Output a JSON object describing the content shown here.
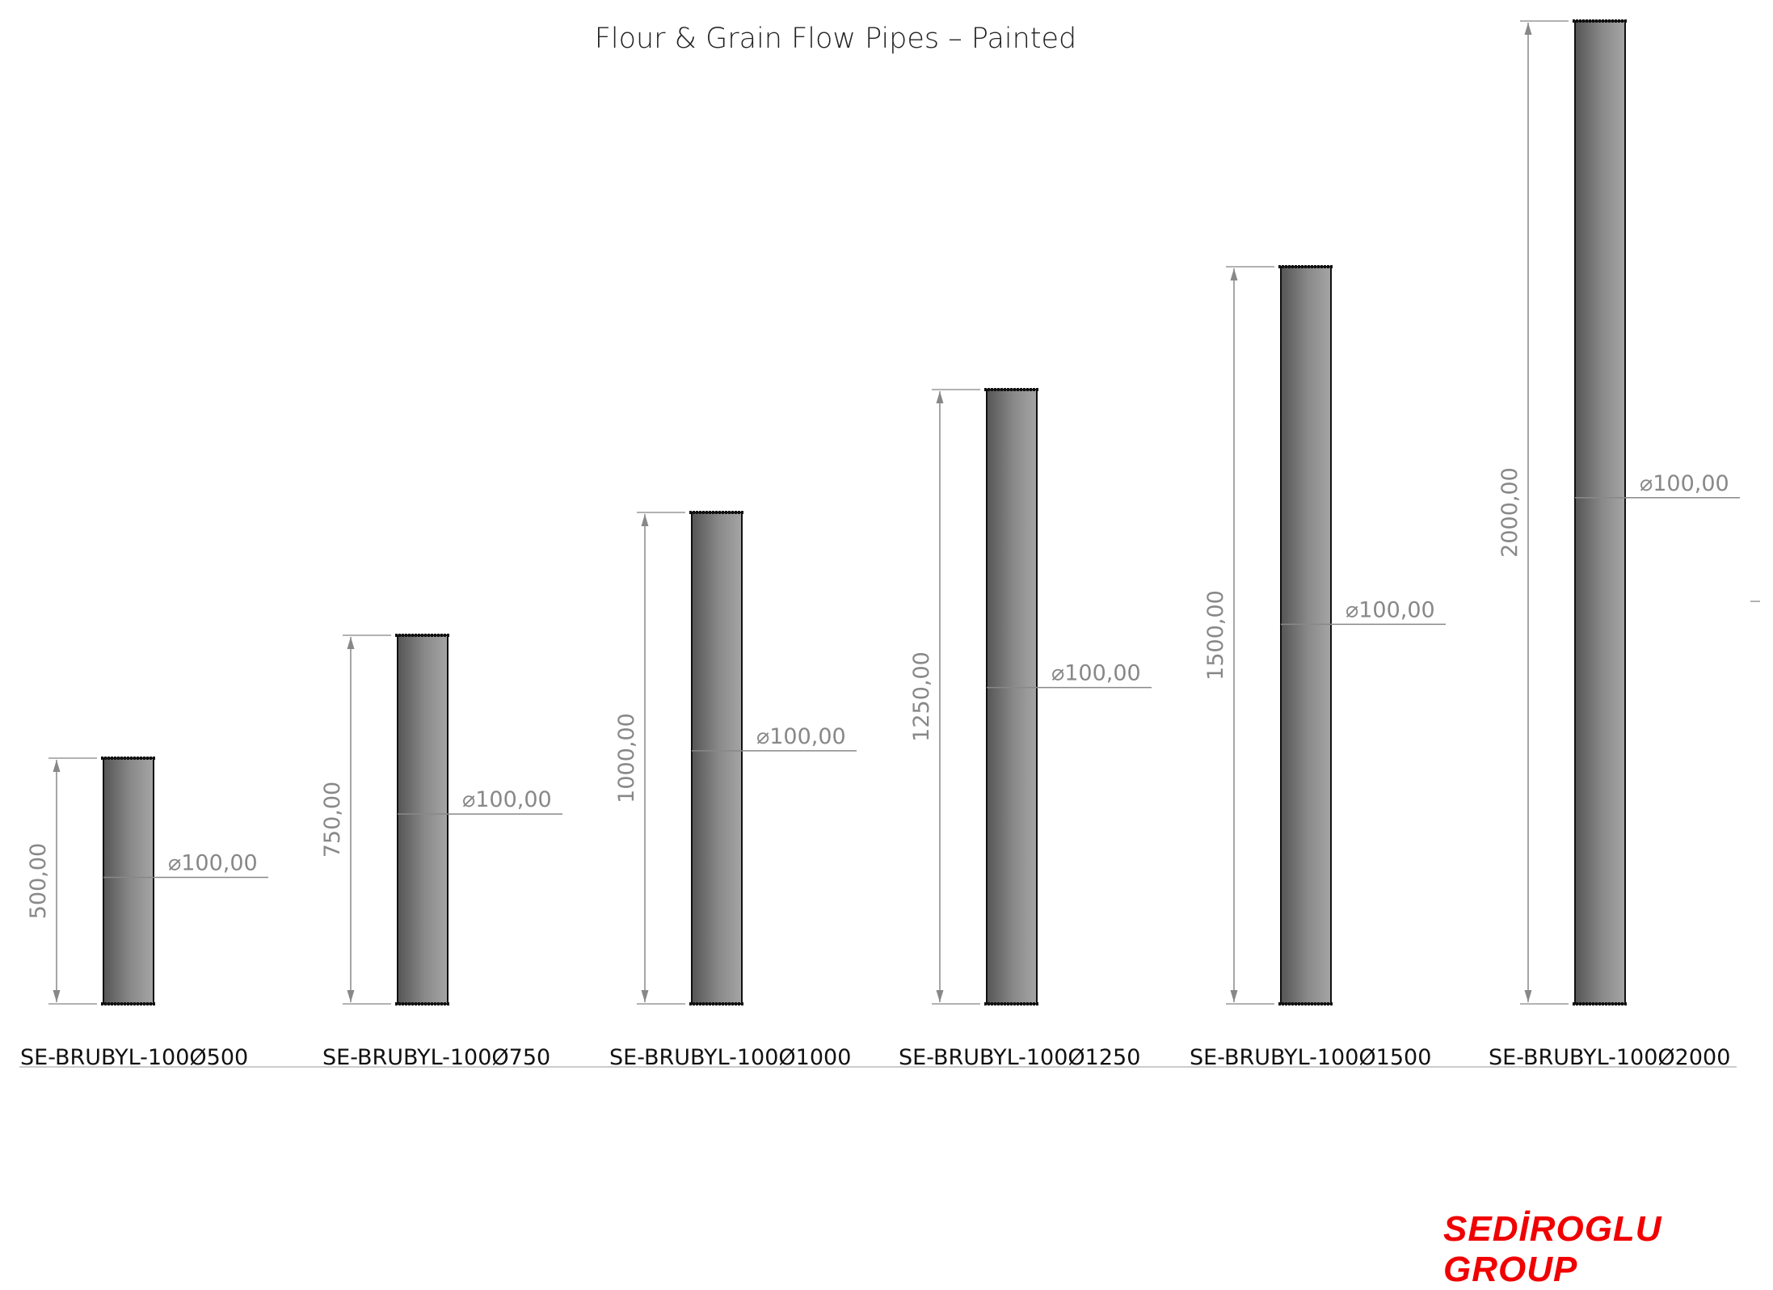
{
  "title": "Flour & Grain Flow Pipes – Painted",
  "logo": "SEDİROGLU GROUP",
  "colors": {
    "pipe_dark": "#555555",
    "pipe_light": "#9a9a9a",
    "dimension": "#888888",
    "logo": "#f00000"
  },
  "pipes": [
    {
      "code": "SE-BRUBYL-100Ø500",
      "length_mm": 500,
      "length_label": "500,00",
      "diameter_label": "⌀100,00"
    },
    {
      "code": "SE-BRUBYL-100Ø750",
      "length_mm": 750,
      "length_label": "750,00",
      "diameter_label": "⌀100,00"
    },
    {
      "code": "SE-BRUBYL-100Ø1000",
      "length_mm": 1000,
      "length_label": "1000,00",
      "diameter_label": "⌀100,00"
    },
    {
      "code": "SE-BRUBYL-100Ø1250",
      "length_mm": 1250,
      "length_label": "1250,00",
      "diameter_label": "⌀100,00"
    },
    {
      "code": "SE-BRUBYL-100Ø1500",
      "length_mm": 1500,
      "length_label": "1500,00",
      "diameter_label": "⌀100,00"
    },
    {
      "code": "SE-BRUBYL-100Ø2000",
      "length_mm": 2000,
      "length_label": "2000,00",
      "diameter_label": "⌀100,00"
    }
  ]
}
